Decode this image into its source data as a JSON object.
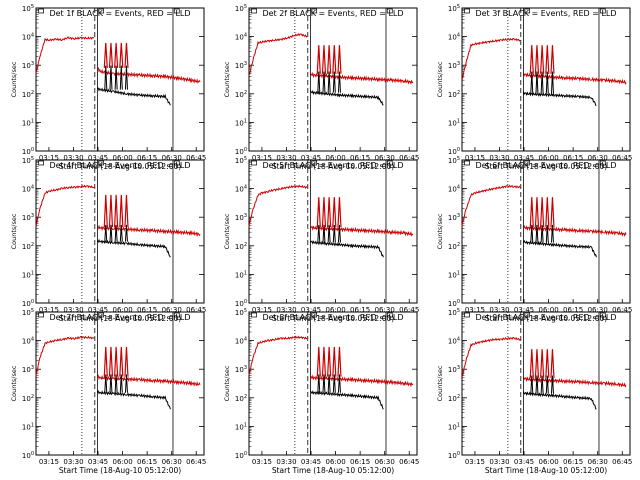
{
  "chart_data": {
    "type": "line",
    "layout": "3x3 grid of panels",
    "x_tick_labels": [
      "03:15",
      "03:30",
      "03:45",
      "06:00",
      "06:15",
      "06:30",
      "06:45"
    ],
    "xlabel": "Start Time (18-Aug-10 05:12:00)",
    "ylabel": "Counts/sec",
    "y_scale": "log",
    "ylim": [
      1,
      100000
    ],
    "y_tick_labels": [
      "10^0",
      "10^1",
      "10^2",
      "10^3",
      "10^4",
      "10^5"
    ],
    "vertical_markers": [
      {
        "style": "dotted",
        "x": 3.55
      },
      {
        "style": "dashed",
        "x": 4.55
      },
      {
        "style": "solid",
        "x": 4.75
      },
      {
        "style": "solid",
        "x": 10.6
      }
    ],
    "series_colors": {
      "events": "#000000",
      "lld": "#cc0000"
    },
    "panels": [
      {
        "title": "Det 1f BLACK = Events, RED = LLD",
        "lld": {
          "x": [
            0,
            0.3,
            0.7,
            1,
            1.5,
            2,
            2.5,
            3,
            3.5,
            4,
            4.5
          ],
          "y": [
            500,
            2000,
            8000,
            7500,
            8000,
            7800,
            9000,
            8500,
            9000,
            8800,
            9000
          ]
        },
        "events": {
          "x": [
            4.75,
            5,
            6,
            7,
            8,
            9,
            10,
            10.4
          ],
          "y": [
            150,
            140,
            120,
            100,
            90,
            85,
            80,
            40
          ]
        },
        "lld_tail": {
          "x": [
            4.75,
            5,
            6,
            7,
            8,
            9,
            10,
            11,
            12,
            12.7
          ],
          "y": [
            800,
            600,
            500,
            480,
            450,
            430,
            400,
            350,
            300,
            260
          ]
        },
        "spikes": {
          "x": [
            5.4,
            5.8,
            6.2,
            6.6,
            7.0
          ],
          "y": [
            6000,
            6000,
            6000,
            6000,
            6000
          ]
        }
      },
      {
        "title": "Det 2f BLACK = Events, RED = LLD",
        "lld": {
          "x": [
            0,
            0.3,
            0.7,
            1,
            1.5,
            2,
            2.5,
            3,
            3.5,
            4,
            4.5
          ],
          "y": [
            400,
            1500,
            6000,
            6500,
            7000,
            7500,
            8000,
            9000,
            11000,
            12000,
            10000
          ]
        },
        "events": {
          "x": [
            4.75,
            5,
            6,
            7,
            8,
            9,
            10,
            10.4
          ],
          "y": [
            120,
            110,
            100,
            90,
            85,
            80,
            75,
            40
          ]
        },
        "lld_tail": {
          "x": [
            4.75,
            5,
            6,
            7,
            8,
            9,
            10,
            11,
            12,
            12.7
          ],
          "y": [
            500,
            450,
            420,
            380,
            360,
            340,
            320,
            300,
            280,
            250
          ]
        },
        "spikes": {
          "x": [
            5.4,
            5.8,
            6.2,
            6.6,
            7.0
          ],
          "y": [
            5000,
            5000,
            5000,
            5000,
            5000
          ]
        }
      },
      {
        "title": "Det 3f BLACK = Events, RED = LLD",
        "lld": {
          "x": [
            0,
            0.3,
            0.7,
            1,
            1.5,
            2,
            2.5,
            3,
            3.5,
            4,
            4.5
          ],
          "y": [
            300,
            1200,
            5000,
            5500,
            6000,
            6500,
            7000,
            7500,
            8000,
            8000,
            7500
          ]
        },
        "events": {
          "x": [
            4.75,
            5,
            6,
            7,
            8,
            9,
            10,
            10.4
          ],
          "y": [
            110,
            100,
            95,
            90,
            85,
            80,
            75,
            40
          ]
        },
        "lld_tail": {
          "x": [
            4.75,
            5,
            6,
            7,
            8,
            9,
            10,
            11,
            12,
            12.7
          ],
          "y": [
            500,
            450,
            420,
            380,
            360,
            340,
            320,
            300,
            280,
            250
          ]
        },
        "spikes": {
          "x": [
            5.4,
            5.8,
            6.2,
            6.6,
            7.0
          ],
          "y": [
            5000,
            5000,
            5000,
            5000,
            5000
          ]
        }
      },
      {
        "title": "Det 4f BLACK = Events, RED = LLD",
        "lld": {
          "x": [
            0,
            0.3,
            0.7,
            1,
            1.5,
            2,
            2.5,
            3,
            3.5,
            4,
            4.5
          ],
          "y": [
            500,
            2000,
            7000,
            8000,
            9000,
            10000,
            11000,
            11000,
            12000,
            12000,
            11000
          ]
        },
        "events": {
          "x": [
            4.75,
            5,
            6,
            7,
            8,
            9,
            10,
            10.4
          ],
          "y": [
            150,
            140,
            130,
            120,
            110,
            100,
            95,
            40
          ]
        },
        "lld_tail": {
          "x": [
            4.75,
            5,
            6,
            7,
            8,
            9,
            10,
            11,
            12,
            12.7
          ],
          "y": [
            450,
            420,
            400,
            380,
            360,
            340,
            320,
            300,
            280,
            250
          ]
        },
        "spikes": {
          "x": [
            5.4,
            5.8,
            6.2,
            6.6,
            7.0
          ],
          "y": [
            6000,
            6000,
            6000,
            6000,
            6000
          ]
        }
      },
      {
        "title": "Det 5f BLACK = Events, RED = LLD",
        "lld": {
          "x": [
            0,
            0.3,
            0.7,
            1,
            1.5,
            2,
            2.5,
            3,
            3.5,
            4,
            4.5
          ],
          "y": [
            500,
            1800,
            6000,
            7000,
            8000,
            9000,
            10000,
            11000,
            12000,
            12000,
            11000
          ]
        },
        "events": {
          "x": [
            4.75,
            5,
            6,
            7,
            8,
            9,
            10,
            10.4
          ],
          "y": [
            140,
            130,
            120,
            110,
            100,
            95,
            90,
            40
          ]
        },
        "lld_tail": {
          "x": [
            4.75,
            5,
            6,
            7,
            8,
            9,
            10,
            11,
            12,
            12.7
          ],
          "y": [
            450,
            420,
            400,
            380,
            360,
            340,
            320,
            300,
            280,
            250
          ]
        },
        "spikes": {
          "x": [
            5.4,
            5.8,
            6.2,
            6.6,
            7.0
          ],
          "y": [
            5000,
            5000,
            5000,
            5000,
            5000
          ]
        }
      },
      {
        "title": "Det 6f BLACK = Events, RED = LLD",
        "lld": {
          "x": [
            0,
            0.3,
            0.7,
            1,
            1.5,
            2,
            2.5,
            3,
            3.5,
            4,
            4.5
          ],
          "y": [
            500,
            1800,
            6000,
            7000,
            8000,
            9000,
            10000,
            11000,
            12000,
            12000,
            11000
          ]
        },
        "events": {
          "x": [
            4.75,
            5,
            6,
            7,
            8,
            9,
            10,
            10.4
          ],
          "y": [
            140,
            130,
            120,
            110,
            100,
            95,
            90,
            40
          ]
        },
        "lld_tail": {
          "x": [
            4.75,
            5,
            6,
            7,
            8,
            9,
            10,
            11,
            12,
            12.7
          ],
          "y": [
            450,
            420,
            400,
            380,
            360,
            340,
            320,
            300,
            280,
            250
          ]
        },
        "spikes": {
          "x": [
            5.4,
            5.8,
            6.2,
            6.6,
            7.0
          ],
          "y": [
            5000,
            5000,
            5000,
            5000,
            5000
          ]
        }
      },
      {
        "title": "Det 7f BLACK = Events, RED = LLD",
        "lld": {
          "x": [
            0,
            0.3,
            0.7,
            1,
            1.5,
            2,
            2.5,
            3,
            3.5,
            4,
            4.5
          ],
          "y": [
            600,
            2500,
            8000,
            9000,
            10000,
            11000,
            12000,
            12000,
            13000,
            13000,
            12000
          ]
        },
        "events": {
          "x": [
            4.75,
            5,
            6,
            7,
            8,
            9,
            10,
            10.4
          ],
          "y": [
            160,
            150,
            140,
            130,
            120,
            110,
            100,
            40
          ]
        },
        "lld_tail": {
          "x": [
            4.75,
            5,
            6,
            7,
            8,
            9,
            10,
            11,
            12,
            12.7
          ],
          "y": [
            550,
            500,
            470,
            450,
            430,
            400,
            380,
            350,
            320,
            290
          ]
        },
        "spikes": {
          "x": [
            5.4,
            5.8,
            6.2,
            6.6,
            7.0
          ],
          "y": [
            6000,
            6000,
            6000,
            6000,
            6000
          ]
        }
      },
      {
        "title": "Det 8f BLACK = Events, RED = LLD",
        "lld": {
          "x": [
            0,
            0.3,
            0.7,
            1,
            1.5,
            2,
            2.5,
            3,
            3.5,
            4,
            4.5
          ],
          "y": [
            600,
            2500,
            8000,
            9000,
            10000,
            11000,
            12000,
            12000,
            13000,
            13000,
            12000
          ]
        },
        "events": {
          "x": [
            4.75,
            5,
            6,
            7,
            8,
            9,
            10,
            10.4
          ],
          "y": [
            160,
            150,
            140,
            130,
            120,
            110,
            100,
            40
          ]
        },
        "lld_tail": {
          "x": [
            4.75,
            5,
            6,
            7,
            8,
            9,
            10,
            11,
            12,
            12.7
          ],
          "y": [
            550,
            500,
            470,
            450,
            430,
            400,
            380,
            350,
            320,
            290
          ]
        },
        "spikes": {
          "x": [
            5.4,
            5.8,
            6.2,
            6.6,
            7.0
          ],
          "y": [
            6000,
            6000,
            6000,
            6000,
            6000
          ]
        }
      },
      {
        "title": "Det 9f BLACK = Events, RED = LLD",
        "lld": {
          "x": [
            0,
            0.3,
            0.7,
            1,
            1.5,
            2,
            2.5,
            3,
            3.5,
            4,
            4.5
          ],
          "y": [
            500,
            2000,
            7000,
            8000,
            9000,
            10000,
            11000,
            11000,
            12000,
            12000,
            11000
          ]
        },
        "events": {
          "x": [
            4.75,
            5,
            6,
            7,
            8,
            9,
            10,
            10.4
          ],
          "y": [
            150,
            140,
            130,
            120,
            110,
            100,
            95,
            40
          ]
        },
        "lld_tail": {
          "x": [
            4.75,
            5,
            6,
            7,
            8,
            9,
            10,
            11,
            12,
            12.7
          ],
          "y": [
            500,
            450,
            420,
            400,
            380,
            360,
            340,
            320,
            300,
            270
          ]
        },
        "spikes": {
          "x": [
            5.4,
            5.8,
            6.2,
            6.6,
            7.0
          ],
          "y": [
            5000,
            5000,
            5000,
            5000,
            5000
          ]
        }
      }
    ]
  }
}
